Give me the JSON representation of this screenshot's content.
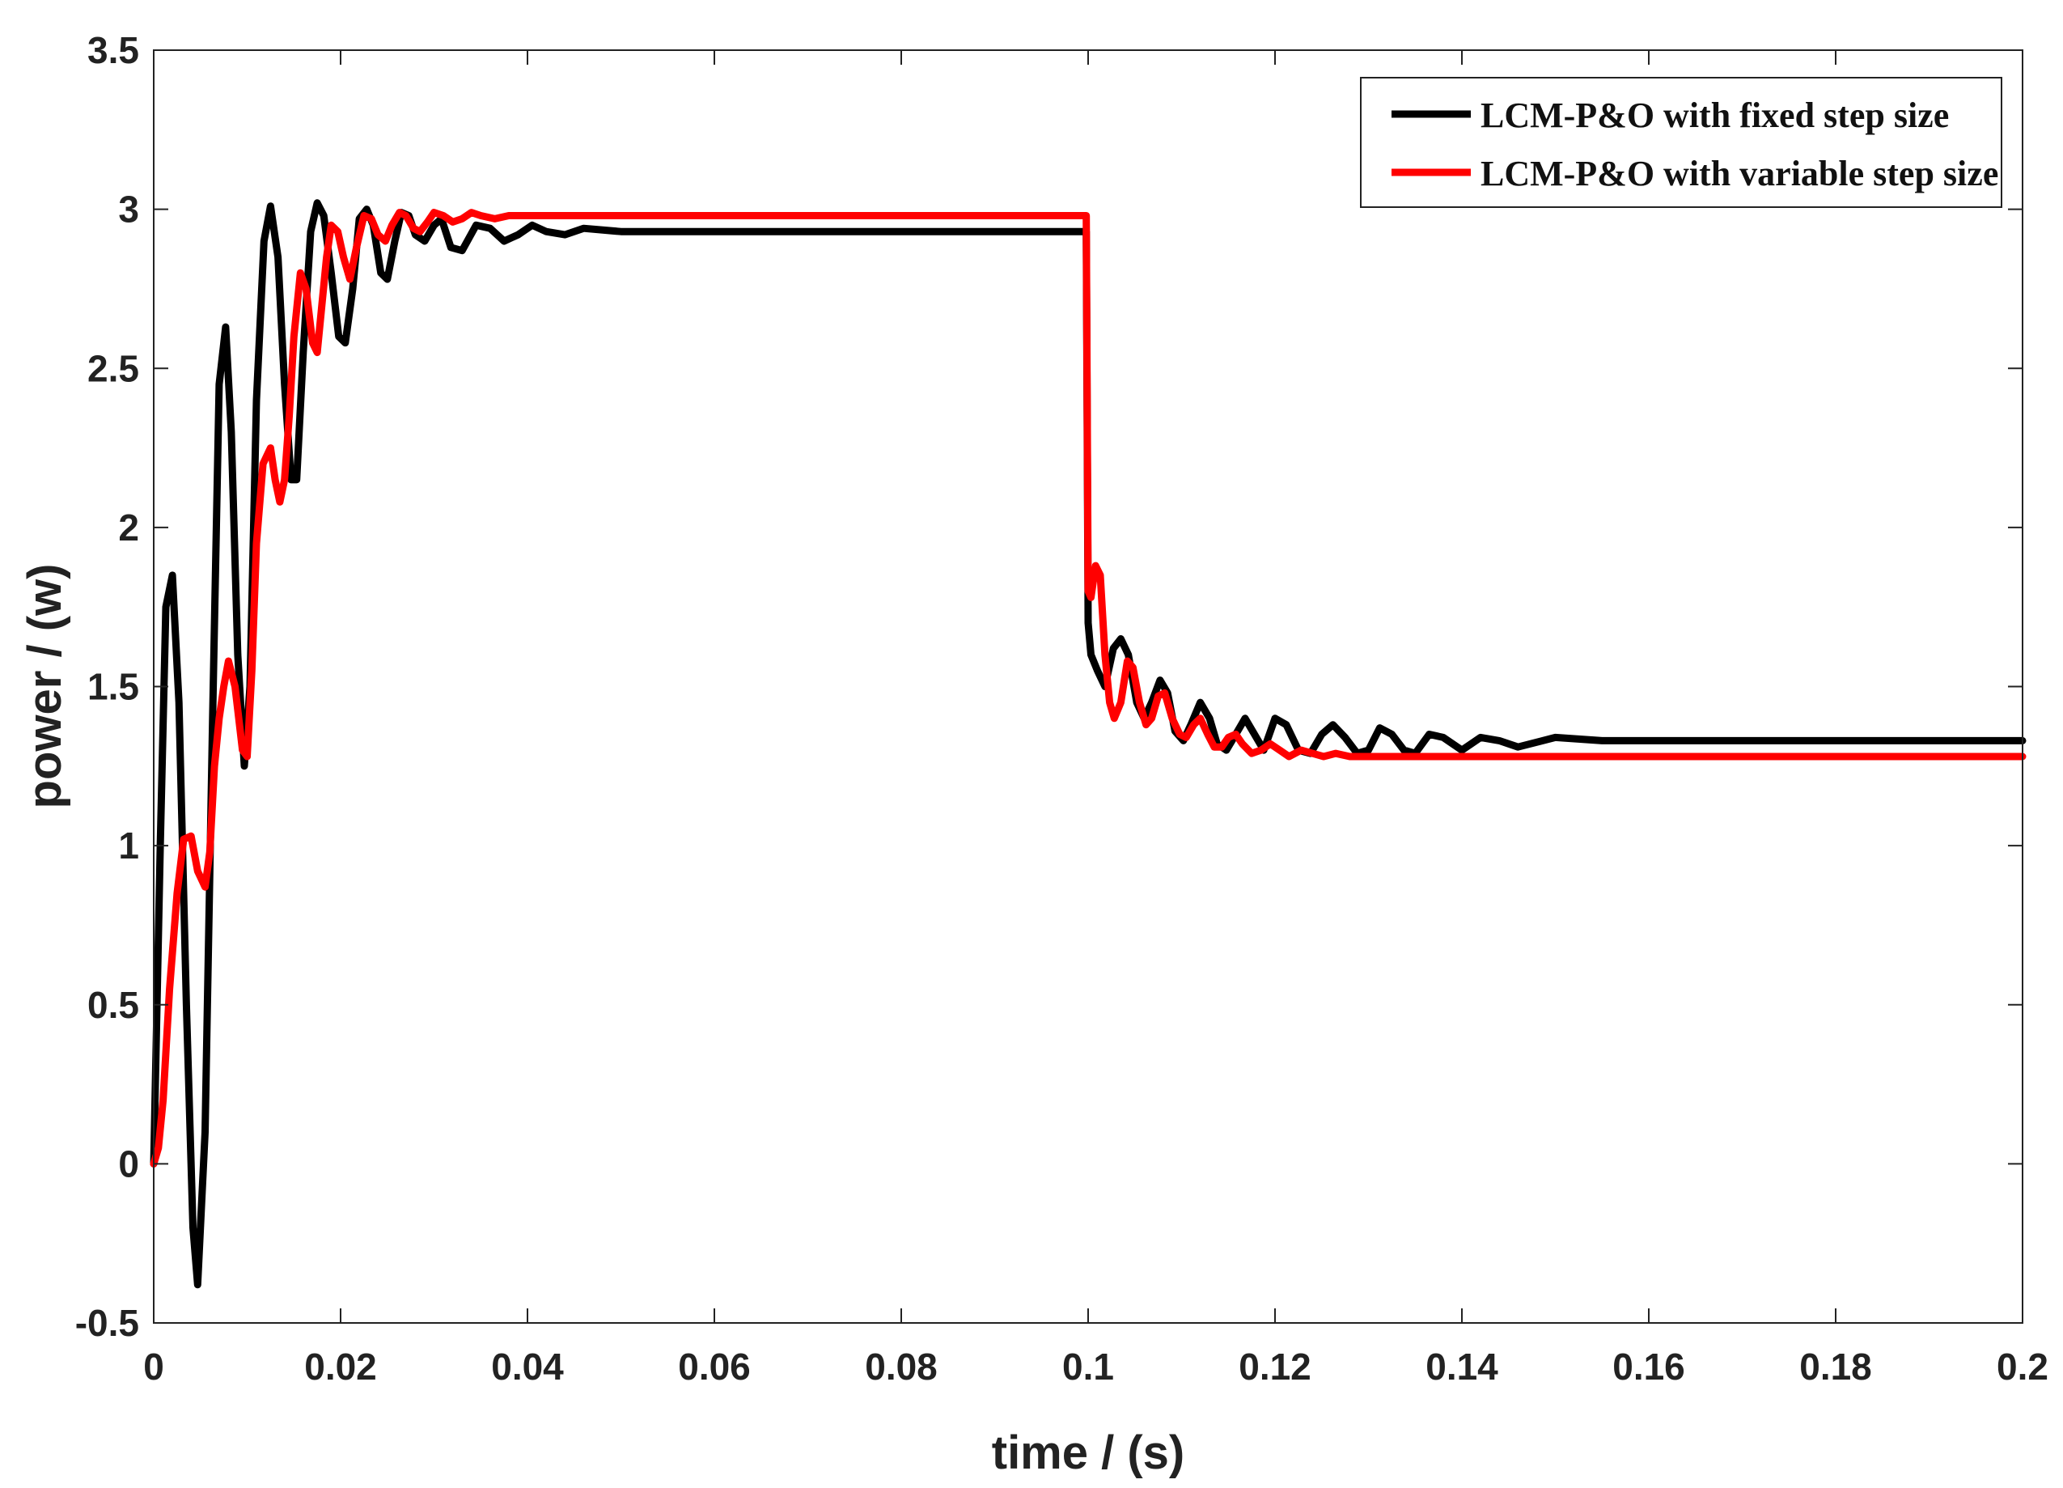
{
  "chart_data": {
    "type": "line",
    "xlabel": "time / (s)",
    "ylabel": "power / (w)",
    "xlim": [
      0,
      0.2
    ],
    "ylim": [
      -0.5,
      3.5
    ],
    "xticks": [
      "0",
      "0.02",
      "0.04",
      "0.06",
      "0.08",
      "0.1",
      "0.12",
      "0.14",
      "0.16",
      "0.18",
      "0.2"
    ],
    "yticks": [
      "-0.5",
      "0",
      "0.5",
      "1",
      "1.5",
      "2",
      "2.5",
      "3",
      "3.5"
    ],
    "grid": false,
    "legend_position": "top-right",
    "series": [
      {
        "name": "LCM-P&O with fixed step size",
        "color": "#000000",
        "x": [
          0,
          0.0007,
          0.0013,
          0.002,
          0.0027,
          0.0035,
          0.0042,
          0.0047,
          0.0055,
          0.0063,
          0.007,
          0.0077,
          0.0083,
          0.009,
          0.0097,
          0.0103,
          0.011,
          0.0118,
          0.0125,
          0.0133,
          0.014,
          0.0147,
          0.0153,
          0.016,
          0.0168,
          0.0175,
          0.0182,
          0.019,
          0.0198,
          0.0205,
          0.0213,
          0.022,
          0.0228,
          0.0235,
          0.0243,
          0.025,
          0.0258,
          0.0265,
          0.0273,
          0.028,
          0.029,
          0.03,
          0.0308,
          0.0318,
          0.033,
          0.0345,
          0.036,
          0.0375,
          0.039,
          0.0405,
          0.042,
          0.044,
          0.046,
          0.05,
          0.06,
          0.07,
          0.08,
          0.09,
          0.0998,
          0.1,
          0.1003,
          0.101,
          0.1018,
          0.1027,
          0.1035,
          0.1043,
          0.1052,
          0.106,
          0.1068,
          0.1077,
          0.1085,
          0.1093,
          0.1102,
          0.111,
          0.112,
          0.113,
          0.1138,
          0.1148,
          0.1158,
          0.1168,
          0.1178,
          0.1188,
          0.12,
          0.1212,
          0.1225,
          0.1238,
          0.125,
          0.1262,
          0.1275,
          0.1288,
          0.13,
          0.1312,
          0.1325,
          0.1338,
          0.135,
          0.1365,
          0.138,
          0.14,
          0.142,
          0.144,
          0.146,
          0.15,
          0.155,
          0.16,
          0.165,
          0.17,
          0.18,
          0.19,
          0.2
        ],
        "y": [
          0.0,
          1.0,
          1.75,
          1.85,
          1.45,
          0.5,
          -0.2,
          -0.38,
          0.1,
          1.4,
          2.45,
          2.63,
          2.3,
          1.6,
          1.25,
          1.5,
          2.4,
          2.9,
          3.01,
          2.85,
          2.45,
          2.15,
          2.15,
          2.55,
          2.93,
          3.02,
          2.98,
          2.8,
          2.6,
          2.58,
          2.75,
          2.97,
          3.0,
          2.95,
          2.8,
          2.78,
          2.9,
          2.99,
          2.98,
          2.92,
          2.9,
          2.95,
          2.97,
          2.88,
          2.87,
          2.95,
          2.94,
          2.9,
          2.92,
          2.95,
          2.93,
          2.92,
          2.94,
          2.93,
          2.93,
          2.93,
          2.93,
          2.93,
          2.93,
          1.7,
          1.6,
          1.55,
          1.5,
          1.62,
          1.65,
          1.6,
          1.45,
          1.4,
          1.45,
          1.52,
          1.48,
          1.36,
          1.33,
          1.38,
          1.45,
          1.4,
          1.32,
          1.3,
          1.35,
          1.4,
          1.35,
          1.3,
          1.4,
          1.38,
          1.3,
          1.29,
          1.35,
          1.38,
          1.34,
          1.29,
          1.3,
          1.37,
          1.35,
          1.3,
          1.29,
          1.35,
          1.34,
          1.3,
          1.34,
          1.33,
          1.31,
          1.34,
          1.33,
          1.33,
          1.33,
          1.33,
          1.33,
          1.33,
          1.33
        ]
      },
      {
        "name": "LCM-P&O with variable step size",
        "color": "#ff0000",
        "x": [
          0,
          0.0005,
          0.001,
          0.0017,
          0.0025,
          0.0032,
          0.004,
          0.0047,
          0.0055,
          0.006,
          0.0065,
          0.007,
          0.0075,
          0.008,
          0.0087,
          0.0095,
          0.01,
          0.0105,
          0.011,
          0.0117,
          0.0125,
          0.013,
          0.0135,
          0.014,
          0.0145,
          0.015,
          0.0157,
          0.0163,
          0.017,
          0.0175,
          0.018,
          0.0185,
          0.019,
          0.0197,
          0.0203,
          0.021,
          0.0217,
          0.0225,
          0.0233,
          0.024,
          0.0248,
          0.0255,
          0.0263,
          0.027,
          0.0278,
          0.0285,
          0.0293,
          0.03,
          0.031,
          0.032,
          0.033,
          0.034,
          0.035,
          0.0365,
          0.038,
          0.04,
          0.045,
          0.06,
          0.08,
          0.0998,
          0.1,
          0.1003,
          0.1008,
          0.1013,
          0.1018,
          0.1023,
          0.1028,
          0.1035,
          0.1042,
          0.1048,
          0.1055,
          0.1062,
          0.1068,
          0.1075,
          0.1082,
          0.109,
          0.1098,
          0.1105,
          0.1113,
          0.112,
          0.1128,
          0.1135,
          0.1143,
          0.115,
          0.1158,
          0.1165,
          0.1175,
          0.1185,
          0.1195,
          0.1205,
          0.1215,
          0.1228,
          0.124,
          0.1252,
          0.1265,
          0.128,
          0.13,
          0.135,
          0.14,
          0.15,
          0.16,
          0.18,
          0.2
        ],
        "y": [
          0.0,
          0.05,
          0.2,
          0.55,
          0.85,
          1.02,
          1.03,
          0.92,
          0.87,
          0.98,
          1.25,
          1.4,
          1.5,
          1.58,
          1.5,
          1.3,
          1.28,
          1.55,
          1.95,
          2.2,
          2.25,
          2.15,
          2.08,
          2.15,
          2.35,
          2.6,
          2.8,
          2.75,
          2.58,
          2.55,
          2.7,
          2.85,
          2.95,
          2.93,
          2.85,
          2.78,
          2.88,
          2.98,
          2.97,
          2.92,
          2.9,
          2.95,
          2.99,
          2.98,
          2.94,
          2.93,
          2.96,
          2.99,
          2.98,
          2.96,
          2.97,
          2.99,
          2.98,
          2.97,
          2.98,
          2.98,
          2.98,
          2.98,
          2.98,
          2.98,
          1.8,
          1.78,
          1.88,
          1.85,
          1.6,
          1.45,
          1.4,
          1.45,
          1.58,
          1.56,
          1.45,
          1.38,
          1.4,
          1.47,
          1.48,
          1.4,
          1.35,
          1.34,
          1.38,
          1.4,
          1.35,
          1.31,
          1.31,
          1.34,
          1.35,
          1.32,
          1.29,
          1.3,
          1.32,
          1.3,
          1.28,
          1.3,
          1.29,
          1.28,
          1.29,
          1.28,
          1.28,
          1.28,
          1.28,
          1.28,
          1.28,
          1.28,
          1.28
        ]
      }
    ]
  }
}
